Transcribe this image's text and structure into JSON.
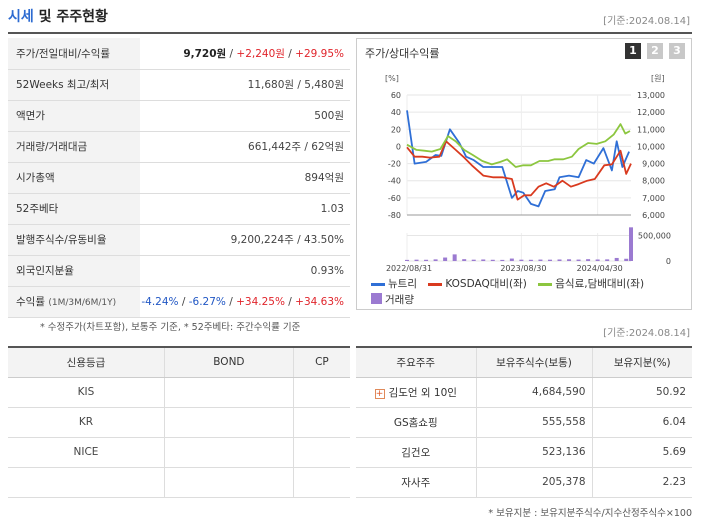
{
  "header": {
    "title_a": "시세",
    "title_b": " 및 주주현황",
    "date": "[기준:2024.08.14]"
  },
  "info": {
    "rows": [
      {
        "label": "주가/전일대비/수익률"
      },
      {
        "label": "52Weeks 최고/최저",
        "value": "11,680원 / 5,480원"
      },
      {
        "label": "액면가",
        "value": "500원"
      },
      {
        "label": "거래량/거래대금",
        "value": "661,442주 / 62억원"
      },
      {
        "label": "시가총액",
        "value": "894억원"
      },
      {
        "label": "52주베타",
        "value": "1.03"
      },
      {
        "label": "발행주식수/유동비율",
        "value": "9,200,224주 / 43.50%"
      },
      {
        "label": "외국인지분율",
        "value": "0.93%"
      },
      {
        "label": "수익률",
        "sublabel": "(1M/3M/6M/1Y)"
      }
    ],
    "price": "9,720원",
    "change": "+2,240원",
    "pct": "+29.95%",
    "sep": " / ",
    "returns": [
      "-4.24%",
      "-6.27%",
      "+34.25%",
      "+34.63%"
    ],
    "note": "* 수정주가(차트포함), 보통주 기준, * 52주베타: 주간수익률 기준"
  },
  "chart_panel": {
    "title": "주가/상대수익률",
    "tabs": [
      "1",
      "2",
      "3"
    ],
    "legend": [
      "뉴트리",
      "KOSDAQ대비(좌)",
      "음식료,담배대비(좌)",
      "거래량"
    ]
  },
  "colors": {
    "stock": "#2f6fd6",
    "kosdaq": "#d93a1f",
    "food": "#8cc63f",
    "volume": "#9b7ad1"
  },
  "chart_data": {
    "type": "line",
    "x_tick_labels": [
      "2022/08/31",
      "2023/08/30",
      "2024/04/30"
    ],
    "x_ticks": [
      0,
      12,
      20
    ],
    "x_range": [
      0,
      23.5
    ],
    "left_axis": {
      "unit": "[%]",
      "ticks": [
        60,
        40,
        20,
        0,
        -20,
        -40,
        -60,
        -80
      ],
      "range": [
        -80,
        60
      ]
    },
    "right_axis": {
      "unit": "[원]",
      "ticks": [
        13000,
        12000,
        11000,
        10000,
        9000,
        8000,
        7000,
        6000
      ],
      "range": [
        6000,
        13000
      ]
    },
    "volume_axis": {
      "ticks": [
        500000,
        0
      ],
      "range": [
        0,
        550000
      ]
    },
    "series": [
      {
        "name": "뉴트리",
        "axis": "right",
        "color_key": "stock",
        "x": [
          0,
          0.8,
          2,
          3,
          3.6,
          4.5,
          5.5,
          6.2,
          7,
          8,
          9,
          10,
          11,
          11.6,
          12.2,
          13,
          13.8,
          14.5,
          15.5,
          16,
          17,
          18,
          18.8,
          19.6,
          20.6,
          21.5,
          22,
          22.6,
          23.3
        ],
        "y": [
          12100,
          9000,
          9100,
          9500,
          9450,
          11000,
          10200,
          9400,
          9200,
          8800,
          8800,
          8800,
          7000,
          7400,
          7300,
          6650,
          6500,
          7400,
          7500,
          8200,
          8300,
          8200,
          9200,
          9000,
          9900,
          8600,
          10300,
          8800,
          9700
        ]
      },
      {
        "name": "KOSDAQ대비(좌)",
        "axis": "left",
        "color_key": "kosdaq",
        "x": [
          0,
          0.8,
          1.6,
          2.4,
          3.4,
          4.1,
          5,
          6,
          6.8,
          8,
          9,
          10,
          11,
          11.6,
          12.3,
          13,
          13.8,
          14.6,
          15.4,
          16.3,
          17.2,
          18,
          18.9,
          19.7,
          20.7,
          21.5,
          22.4,
          23,
          23.5
        ],
        "y": [
          -1,
          -12,
          -12,
          -13,
          -12,
          6,
          -3,
          -13,
          -22,
          -34,
          -36,
          -36,
          -38,
          -62,
          -57,
          -57,
          -47,
          -43,
          -47,
          -40,
          -47,
          -44,
          -40,
          -38,
          -22,
          -21,
          -5,
          -32,
          -20
        ]
      },
      {
        "name": "음식료,담배대비(좌)",
        "axis": "left",
        "color_key": "food",
        "x": [
          0,
          1,
          1.8,
          2.6,
          3.5,
          4.3,
          5.1,
          6,
          6.9,
          7.9,
          8.9,
          9.8,
          10.5,
          11.4,
          12.2,
          13,
          13.9,
          14.8,
          15.5,
          16.4,
          17.3,
          18,
          19,
          19.9,
          20.8,
          21.7,
          22.4,
          22.9,
          23.4
        ],
        "y": [
          2,
          -4,
          -5,
          -6,
          -3,
          12,
          6,
          -4,
          -10,
          -17,
          -21,
          -18,
          -15,
          -24,
          -22,
          -22,
          -17,
          -17,
          -15,
          -15,
          -12,
          -3,
          4,
          3,
          6,
          14,
          26,
          15,
          18
        ]
      }
    ],
    "volume": {
      "name": "거래량",
      "x": [
        0,
        1,
        2,
        3,
        4,
        5,
        6,
        7,
        8,
        9,
        10,
        11,
        12,
        13,
        14,
        15,
        16,
        17,
        18,
        19,
        20,
        21,
        22,
        23,
        23.5
      ],
      "values": [
        22000,
        26000,
        24000,
        32000,
        68000,
        130000,
        36000,
        26000,
        30000,
        24000,
        22000,
        48000,
        26000,
        24000,
        28000,
        26000,
        30000,
        34000,
        28000,
        36000,
        30000,
        32000,
        60000,
        44000,
        661442
      ]
    },
    "grid": true
  },
  "date2": "[기준:2024.08.14]",
  "credit": {
    "headers": [
      "신용등급",
      "BOND",
      "CP"
    ],
    "rows": [
      [
        "KIS",
        "",
        ""
      ],
      [
        "KR",
        "",
        ""
      ],
      [
        "NICE",
        "",
        ""
      ],
      [
        "",
        "",
        ""
      ]
    ]
  },
  "holders": {
    "headers": [
      "주요주주",
      "보유주식수(보통)",
      "보유지분(%)"
    ],
    "rows": [
      {
        "name": "김도언 외 10인",
        "shares": "4,684,590",
        "pct": "50.92"
      },
      {
        "name": "GS홈쇼핑",
        "shares": "555,558",
        "pct": "6.04"
      },
      {
        "name": "김건오",
        "shares": "523,136",
        "pct": "5.69"
      },
      {
        "name": "자사주",
        "shares": "205,378",
        "pct": "2.23"
      }
    ],
    "note": "* 보유지분 : 보유지분주식수/지수산정주식수×100"
  }
}
